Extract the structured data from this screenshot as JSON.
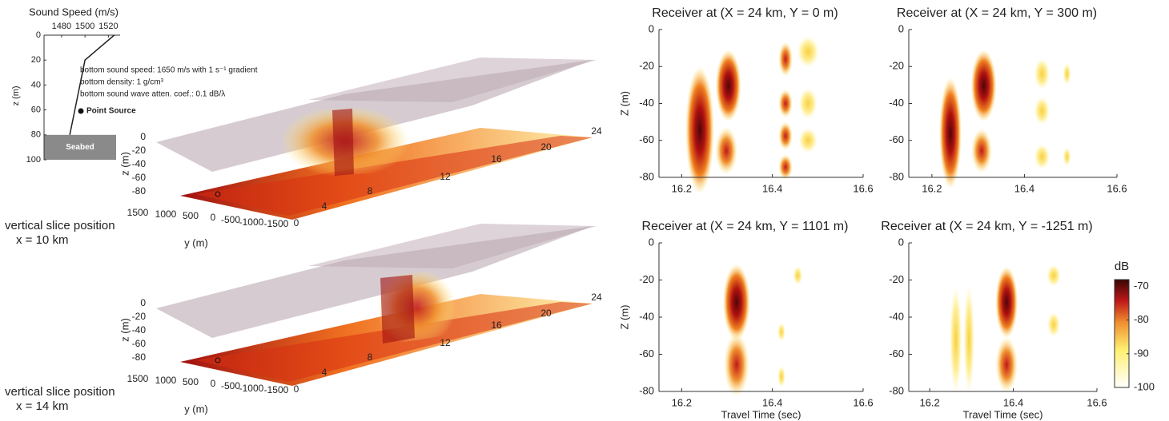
{
  "profile": {
    "title": "Sound Speed (m/s)",
    "xticks": [
      1480,
      1500,
      1520
    ],
    "xlim": [
      1465,
      1530
    ],
    "yticks": [
      0,
      20,
      40,
      60,
      80,
      100
    ],
    "ylim": [
      0,
      100
    ],
    "ylabel": "z (m)",
    "speed": [
      1525,
      1500,
      1487
    ],
    "depth": [
      0,
      20,
      80
    ],
    "annotations": [
      "bottom sound speed: 1650 m/s with 1 s⁻¹ gradient",
      "bottom density: 1 g/cm³",
      "bottom sound wave atten. coef.: 0.1 dB/λ"
    ],
    "source": "Point Source",
    "seabed": "Seabed"
  },
  "slices": [
    {
      "caption": "vertical slice position",
      "position": "x = 10 km",
      "zlabel": "z (m)",
      "ylabel": "y (m)",
      "zticks": [
        0,
        -20,
        -40,
        -60,
        -80
      ],
      "yticks": [
        1500,
        1000,
        500,
        0,
        -500,
        -1000,
        -1500
      ],
      "xticks": [
        0,
        4,
        8,
        12,
        16,
        20,
        24
      ]
    },
    {
      "caption": "vertical slice position",
      "position": "x = 14 km",
      "zlabel": "z (m)",
      "ylabel": "y (m)",
      "zticks": [
        0,
        -20,
        -40,
        -60,
        -80
      ],
      "yticks": [
        1500,
        1000,
        500,
        0,
        -500,
        -1000,
        -1500
      ],
      "xticks": [
        0,
        4,
        8,
        12,
        16,
        20,
        24
      ]
    }
  ],
  "chart_data": [
    {
      "type": "heatmap",
      "title": "Receiver at (X = 24 km, Y = 0 m)",
      "ylabel": "Z (m)",
      "xlim": [
        16.15,
        16.6
      ],
      "xticks": [
        16.2,
        16.4,
        16.6
      ],
      "ylim": [
        -80,
        0
      ],
      "yticks": [
        0,
        -20,
        -40,
        -60,
        -80
      ]
    },
    {
      "type": "heatmap",
      "title": "Receiver at (X = 24 km, Y = 300 m)",
      "xlim": [
        16.15,
        16.6
      ],
      "xticks": [
        16.2,
        16.4,
        16.6
      ],
      "ylim": [
        -80,
        0
      ],
      "yticks": [
        0,
        -20,
        -40,
        -60,
        -80
      ]
    },
    {
      "type": "heatmap",
      "title": "Receiver at (X = 24 km, Y = 1101 m)",
      "ylabel": "Z (m)",
      "xlabel": "Travel Time (sec)",
      "xlim": [
        16.15,
        16.6
      ],
      "xticks": [
        16.2,
        16.4,
        16.6
      ],
      "ylim": [
        -80,
        0
      ],
      "yticks": [
        0,
        -20,
        -40,
        -60,
        -80
      ]
    },
    {
      "type": "heatmap",
      "title": "Receiver at (X = 24 km, Y = -1251 m)",
      "xlabel": "Travel Time (sec)",
      "xlim": [
        16.15,
        16.6
      ],
      "xticks": [
        16.2,
        16.4,
        16.6
      ],
      "ylim": [
        -80,
        0
      ],
      "yticks": [
        0,
        -20,
        -40,
        -60,
        -80
      ],
      "colorbar": {
        "label": "dB",
        "lim": [
          -100,
          -68
        ],
        "ticks": [
          -70,
          -80,
          -90,
          -100
        ]
      }
    }
  ]
}
